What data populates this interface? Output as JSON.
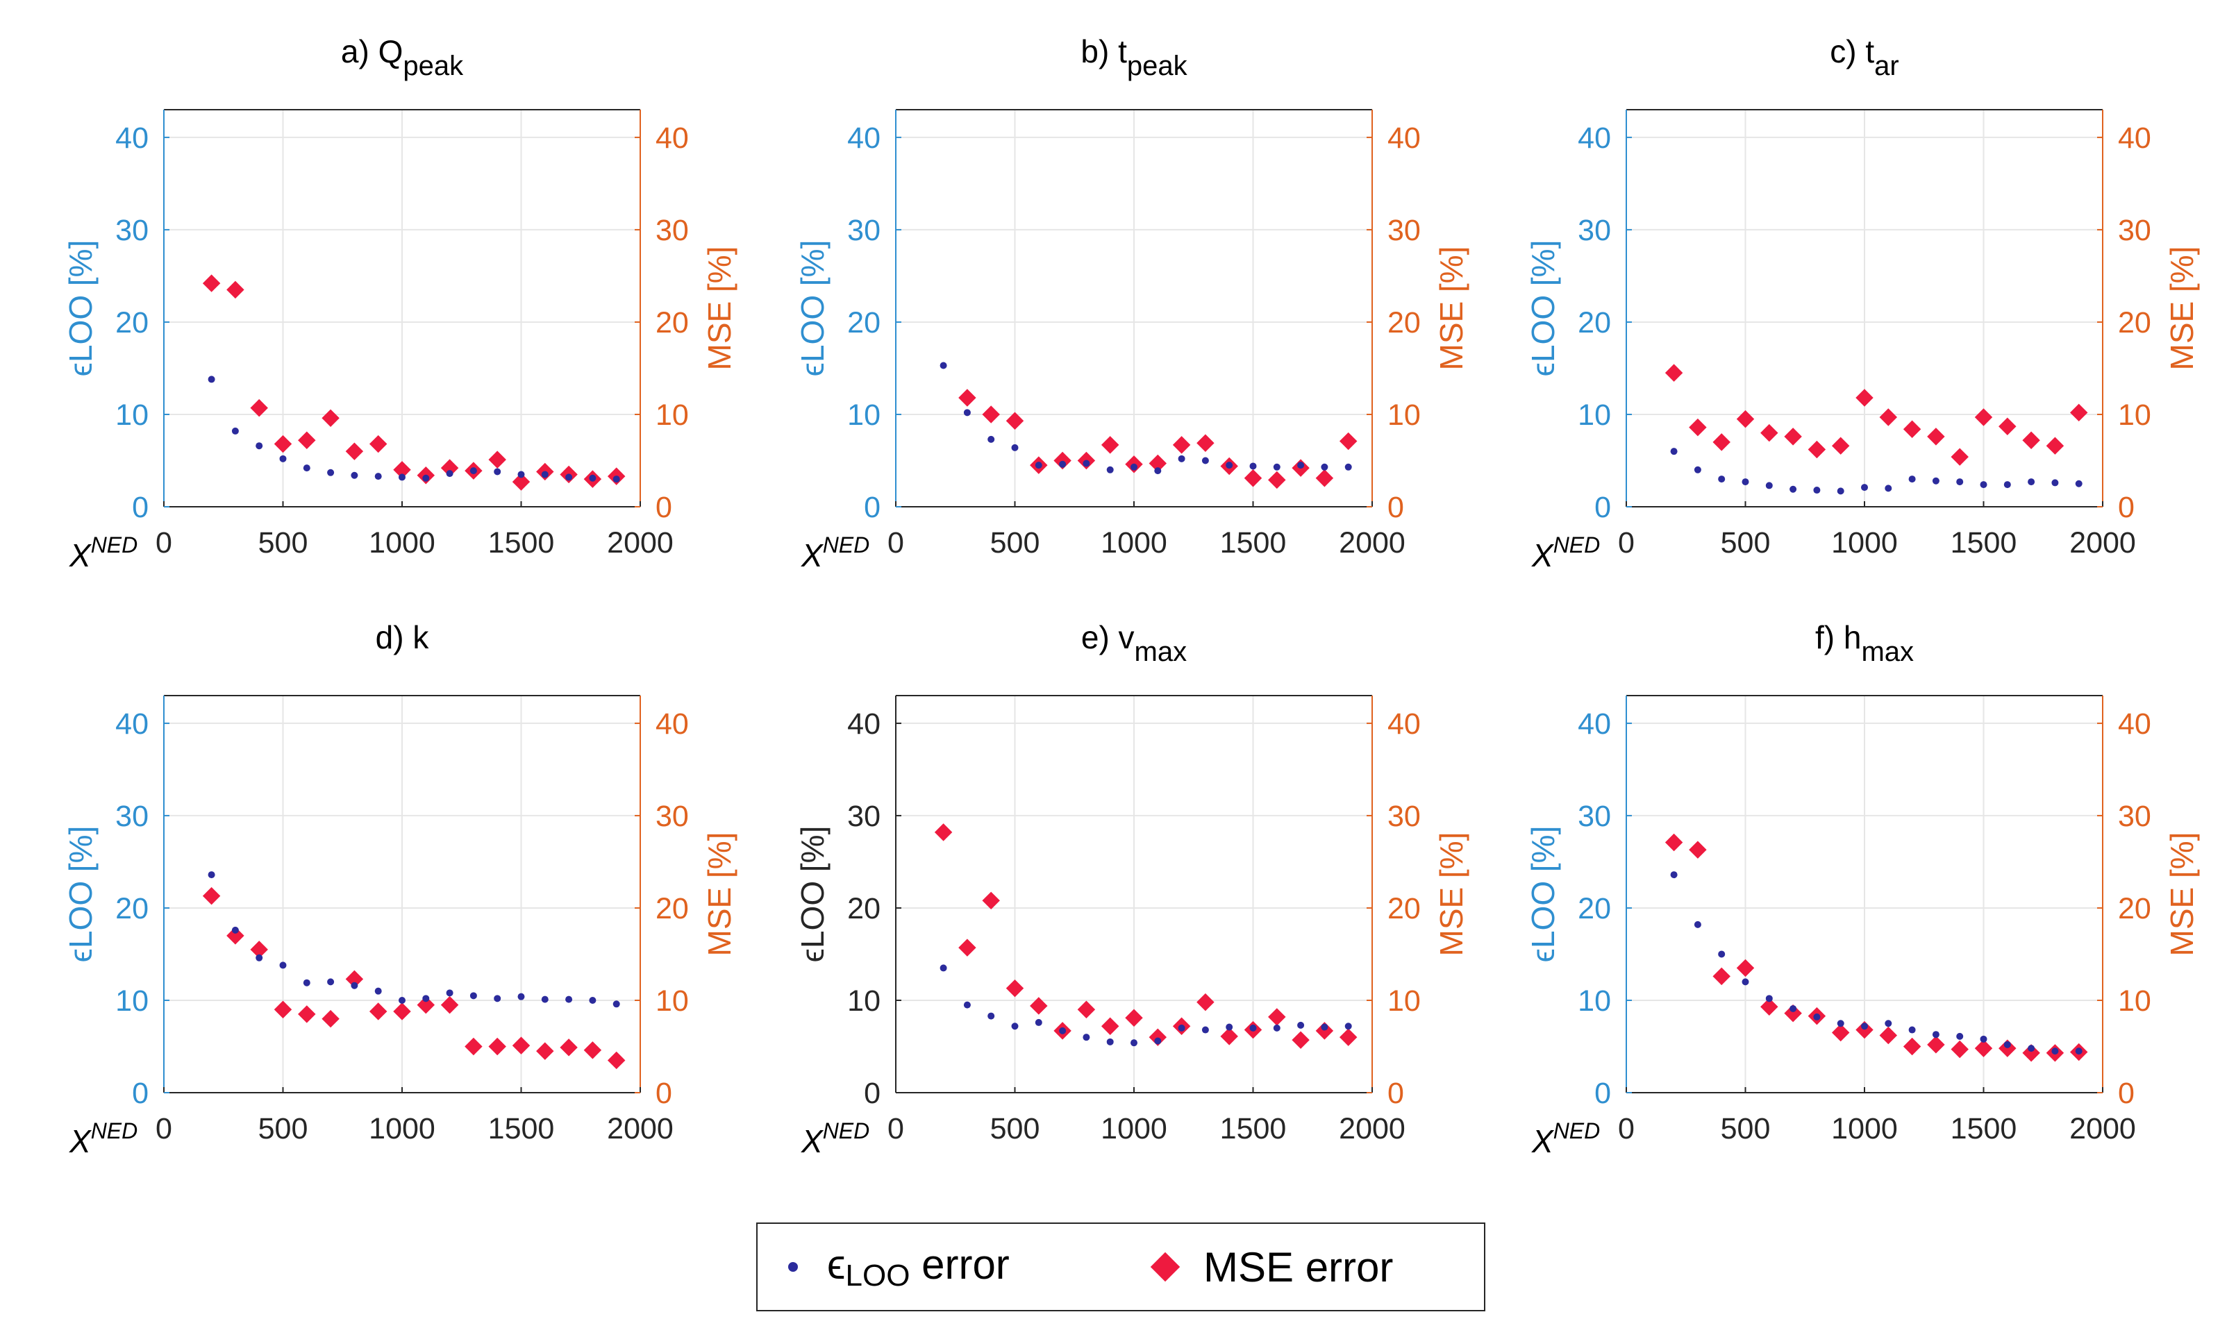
{
  "chart_data": [
    {
      "type": "scatter",
      "title": "a) Q",
      "title_sub": "peak",
      "xlabel": "X",
      "xlabel_sup": "NED",
      "ylabel_left": "ϵLOO [%]",
      "ylabel_right": "MSE [%]",
      "ylabel_left_color": "#2f8fd0",
      "xlim": [
        0,
        2000
      ],
      "ylim": [
        0,
        43
      ],
      "xticks": [
        0,
        500,
        1000,
        1500,
        2000
      ],
      "yticks": [
        0,
        10,
        20,
        30,
        40
      ],
      "grid": true,
      "x": [
        200,
        300,
        400,
        500,
        600,
        700,
        800,
        900,
        1000,
        1100,
        1200,
        1300,
        1400,
        1500,
        1600,
        1700,
        1800,
        1900
      ],
      "series": [
        {
          "name": "ϵLOO error",
          "values": [
            13.8,
            8.2,
            6.6,
            5.2,
            4.2,
            3.7,
            3.4,
            3.3,
            3.2,
            3.1,
            3.6,
            3.9,
            3.8,
            3.5,
            3.5,
            3.2,
            3.1,
            3.0
          ]
        },
        {
          "name": "MSE error",
          "values": [
            24.2,
            23.5,
            10.7,
            6.8,
            7.2,
            9.6,
            6.0,
            6.8,
            4.0,
            3.4,
            4.2,
            3.9,
            5.1,
            2.7,
            3.8,
            3.5,
            3.0,
            3.3
          ]
        }
      ]
    },
    {
      "type": "scatter",
      "title": "b) t",
      "title_sub": "peak",
      "xlabel": "X",
      "xlabel_sup": "NED",
      "ylabel_left": "ϵLOO [%]",
      "ylabel_right": "MSE [%]",
      "ylabel_left_color": "#2f8fd0",
      "xlim": [
        0,
        2000
      ],
      "ylim": [
        0,
        43
      ],
      "xticks": [
        0,
        500,
        1000,
        1500,
        2000
      ],
      "yticks": [
        0,
        10,
        20,
        30,
        40
      ],
      "grid": true,
      "x": [
        200,
        300,
        400,
        500,
        600,
        700,
        800,
        900,
        1000,
        1100,
        1200,
        1300,
        1400,
        1500,
        1600,
        1700,
        1800,
        1900
      ],
      "series": [
        {
          "name": "ϵLOO error",
          "values": [
            15.3,
            10.2,
            7.3,
            6.4,
            4.5,
            4.6,
            4.7,
            4.0,
            4.3,
            3.9,
            5.2,
            5.0,
            4.5,
            4.4,
            4.3,
            4.5,
            4.3,
            4.3
          ]
        },
        {
          "name": "MSE error",
          "values": [
            null,
            11.8,
            10.0,
            9.3,
            4.5,
            5.0,
            5.0,
            6.7,
            4.6,
            4.7,
            6.7,
            6.9,
            4.4,
            3.1,
            2.9,
            4.2,
            3.1,
            7.1
          ]
        }
      ]
    },
    {
      "type": "scatter",
      "title": "c) t",
      "title_sub": "ar",
      "xlabel": "X",
      "xlabel_sup": "NED",
      "ylabel_left": "ϵLOO [%]",
      "ylabel_right": "MSE [%]",
      "ylabel_left_color": "#2f8fd0",
      "xlim": [
        0,
        2000
      ],
      "ylim": [
        0,
        43
      ],
      "xticks": [
        0,
        500,
        1000,
        1500,
        2000
      ],
      "yticks": [
        0,
        10,
        20,
        30,
        40
      ],
      "grid": true,
      "x": [
        200,
        300,
        400,
        500,
        600,
        700,
        800,
        900,
        1000,
        1100,
        1200,
        1300,
        1400,
        1500,
        1600,
        1700,
        1800,
        1900
      ],
      "series": [
        {
          "name": "ϵLOO error",
          "values": [
            6.0,
            4.0,
            3.0,
            2.7,
            2.3,
            1.9,
            1.8,
            1.7,
            2.1,
            2.0,
            3.0,
            2.8,
            2.7,
            2.4,
            2.4,
            2.7,
            2.6,
            2.5
          ]
        },
        {
          "name": "MSE error",
          "values": [
            14.5,
            8.6,
            7.0,
            9.5,
            8.0,
            7.6,
            6.2,
            6.6,
            11.8,
            9.7,
            8.4,
            7.6,
            5.4,
            9.7,
            8.7,
            7.2,
            6.6,
            10.2
          ]
        }
      ]
    },
    {
      "type": "scatter",
      "title": "d) k",
      "title_sub": "",
      "xlabel": "X",
      "xlabel_sup": "NED",
      "ylabel_left": "ϵLOO [%]",
      "ylabel_right": "MSE [%]",
      "ylabel_left_color": "#2f8fd0",
      "xlim": [
        0,
        2000
      ],
      "ylim": [
        0,
        43
      ],
      "xticks": [
        0,
        500,
        1000,
        1500,
        2000
      ],
      "yticks": [
        0,
        10,
        20,
        30,
        40
      ],
      "grid": true,
      "x": [
        200,
        300,
        400,
        500,
        600,
        700,
        800,
        900,
        1000,
        1100,
        1200,
        1300,
        1400,
        1500,
        1600,
        1700,
        1800,
        1900
      ],
      "series": [
        {
          "name": "ϵLOO error",
          "values": [
            23.6,
            17.6,
            14.6,
            13.8,
            11.9,
            12.0,
            11.6,
            11.0,
            10.0,
            10.2,
            10.8,
            10.5,
            10.2,
            10.4,
            10.1,
            10.1,
            10.0,
            9.6
          ]
        },
        {
          "name": "MSE error",
          "values": [
            21.3,
            17.0,
            15.5,
            9.0,
            8.5,
            8.0,
            12.3,
            8.8,
            8.8,
            9.5,
            9.5,
            5.0,
            5.0,
            5.1,
            4.5,
            4.9,
            4.6,
            3.5
          ]
        }
      ]
    },
    {
      "type": "scatter",
      "title": "e) v",
      "title_sub": "max",
      "xlabel": "X",
      "xlabel_sup": "NED",
      "ylabel_left": "ϵLOO [%]",
      "ylabel_right": "MSE [%]",
      "ylabel_left_color": "#262626",
      "xlim": [
        0,
        2000
      ],
      "ylim": [
        0,
        43
      ],
      "xticks": [
        0,
        500,
        1000,
        1500,
        2000
      ],
      "yticks": [
        0,
        10,
        20,
        30,
        40
      ],
      "grid": true,
      "x": [
        200,
        300,
        400,
        500,
        600,
        700,
        800,
        900,
        1000,
        1100,
        1200,
        1300,
        1400,
        1500,
        1600,
        1700,
        1800,
        1900
      ],
      "series": [
        {
          "name": "ϵLOO error",
          "values": [
            13.5,
            9.5,
            8.3,
            7.2,
            7.6,
            6.7,
            6.0,
            5.5,
            5.4,
            5.6,
            7.0,
            6.8,
            7.1,
            7.0,
            7.0,
            7.3,
            7.1,
            7.2
          ]
        },
        {
          "name": "MSE error",
          "values": [
            28.2,
            15.7,
            20.8,
            11.3,
            9.4,
            6.7,
            9.0,
            7.2,
            8.1,
            6.0,
            7.2,
            9.8,
            6.1,
            6.8,
            8.2,
            5.7,
            6.7,
            6.0
          ]
        }
      ]
    },
    {
      "type": "scatter",
      "title": "f) h",
      "title_sub": "max",
      "xlabel": "X",
      "xlabel_sup": "NED",
      "ylabel_left": "ϵLOO [%]",
      "ylabel_right": "MSE [%]",
      "ylabel_left_color": "#2f8fd0",
      "xlim": [
        0,
        2000
      ],
      "ylim": [
        0,
        43
      ],
      "xticks": [
        0,
        500,
        1000,
        1500,
        2000
      ],
      "yticks": [
        0,
        10,
        20,
        30,
        40
      ],
      "grid": true,
      "x": [
        200,
        300,
        400,
        500,
        600,
        700,
        800,
        900,
        1000,
        1100,
        1200,
        1300,
        1400,
        1500,
        1600,
        1700,
        1800,
        1900
      ],
      "series": [
        {
          "name": "ϵLOO error",
          "values": [
            23.6,
            18.2,
            15.0,
            12.0,
            10.2,
            9.1,
            8.2,
            7.5,
            7.2,
            7.5,
            6.8,
            6.3,
            6.1,
            5.8,
            5.2,
            4.8,
            4.5,
            4.5
          ]
        },
        {
          "name": "MSE error",
          "values": [
            27.1,
            26.3,
            12.6,
            13.5,
            9.3,
            8.6,
            8.3,
            6.5,
            6.8,
            6.2,
            5.0,
            5.2,
            4.7,
            4.8,
            4.8,
            4.3,
            4.3,
            4.4
          ]
        }
      ]
    }
  ],
  "legend": {
    "items": [
      {
        "name": "ϵLOO error",
        "symbol": "ϵ",
        "sub": "LOO",
        "text": " error"
      },
      {
        "name": "MSE error",
        "text": "MSE error"
      }
    ],
    "position": "bottom-center"
  },
  "colors": {
    "loo_marker": "#2b2b9c",
    "mse_marker": "#ee1a3f",
    "left_axis": "#2f8fd0",
    "right_axis": "#e0621f",
    "grid": "#e6e6e6",
    "axis_dark": "#262626"
  }
}
